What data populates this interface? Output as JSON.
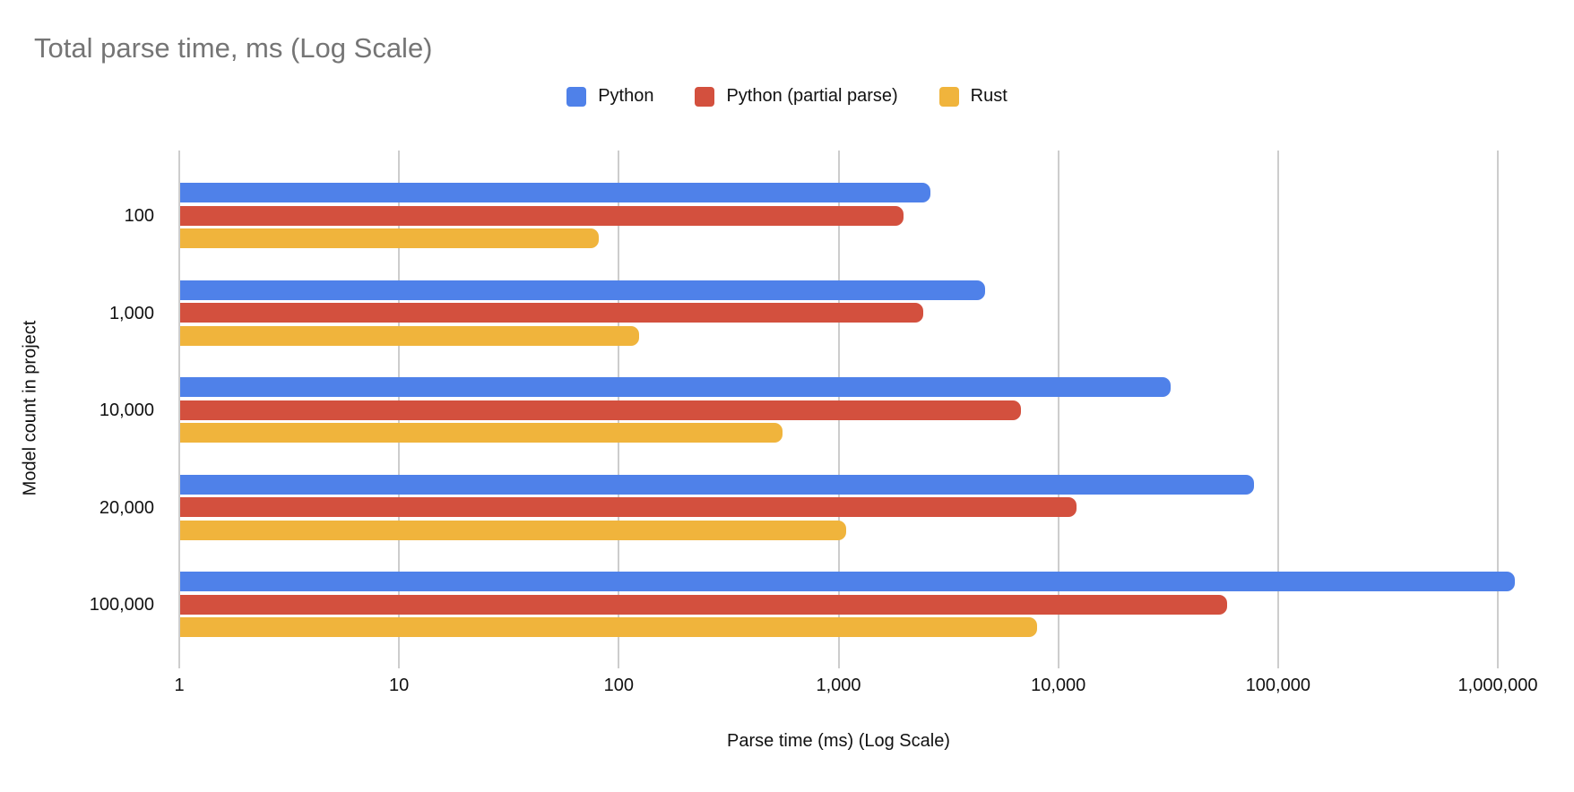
{
  "title": "Total parse time, ms (Log Scale)",
  "chart_data": {
    "type": "bar",
    "orientation": "horizontal",
    "x_scale": "log",
    "title": "Total parse time, ms (Log Scale)",
    "xlabel": "Parse time (ms) (Log Scale)",
    "ylabel": "Model count in project",
    "categories": [
      "100",
      "1,000",
      "10,000",
      "20,000",
      "100,000"
    ],
    "series": [
      {
        "name": "Python",
        "color": "#4f81e9",
        "values": [
          2600,
          4600,
          32000,
          77000,
          1180000
        ]
      },
      {
        "name": "Python (partial parse)",
        "color": "#d3503e",
        "values": [
          1950,
          2400,
          6700,
          12000,
          58000
        ]
      },
      {
        "name": "Rust",
        "color": "#f0b43c",
        "values": [
          80,
          123,
          550,
          1070,
          7900
        ]
      }
    ],
    "x_ticks": [
      1,
      10,
      100,
      1000,
      10000,
      100000,
      1000000
    ],
    "x_tick_labels": [
      "1",
      "10",
      "100",
      "1,000",
      "10,000",
      "100,000",
      "1,000,000"
    ],
    "xlim": [
      1,
      1000000
    ],
    "grid": true,
    "legend_position": "top",
    "title_color": "#757575",
    "gridline_color": "#cdcdcd",
    "text_color": "#111111",
    "background_color": "#ffffff"
  }
}
